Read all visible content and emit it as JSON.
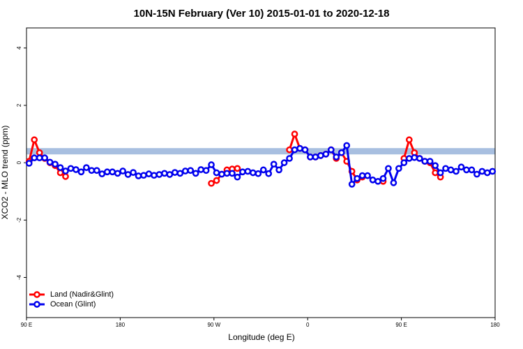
{
  "chart_data": {
    "type": "line",
    "title": "10N-15N February (Ver 10)   2015-01-01 to 2020-12-18",
    "x_label": "Longitude (deg E)",
    "y_label": "XCO2 - MLO trend (ppm)",
    "xlim": [
      90,
      540
    ],
    "ylim": [
      -5.4,
      4.7
    ],
    "xticks": [
      {
        "value": 90,
        "label": "90 E"
      },
      {
        "value": 180,
        "label": "180"
      },
      {
        "value": 270,
        "label": "90 W"
      },
      {
        "value": 360,
        "label": "0"
      },
      {
        "value": 450,
        "label": "90 E"
      },
      {
        "value": 540,
        "label": "180"
      }
    ],
    "yticks": [
      -4,
      -2,
      0,
      2,
      4
    ],
    "band": {
      "ylim": [
        0.29,
        0.51
      ],
      "color": "#a8bfe0"
    },
    "legend": "bottom-left",
    "x": [
      92.5,
      97.5,
      102.5,
      107.5,
      112.5,
      117.5,
      122.5,
      127.5,
      132.5,
      137.5,
      142.5,
      147.5,
      152.5,
      157.5,
      162.5,
      167.5,
      172.5,
      177.5,
      182.5,
      187.5,
      192.5,
      197.5,
      202.5,
      207.5,
      212.5,
      217.5,
      222.5,
      227.5,
      232.5,
      237.5,
      242.5,
      247.5,
      252.5,
      257.5,
      262.5,
      267.5,
      272.5,
      277.5,
      282.5,
      287.5,
      292.5,
      297.5,
      302.5,
      307.5,
      312.5,
      317.5,
      322.5,
      327.5,
      332.5,
      337.5,
      342.5,
      347.5,
      352.5,
      357.5,
      362.5,
      367.5,
      372.5,
      377.5,
      382.5,
      387.5,
      392.5,
      397.5,
      402.5,
      407.5,
      412.5,
      417.5,
      422.5,
      427.5,
      432.5,
      437.5,
      442.5,
      447.5,
      452.5,
      457.5,
      462.5,
      467.5,
      472.5,
      477.5,
      482.5,
      487.5,
      492.5,
      497.5,
      502.5,
      507.5,
      512.5,
      517.5,
      522.5,
      527.5,
      532.5,
      537.5
    ],
    "series": [
      {
        "name": "Land (Nadir&Glint)",
        "color": "#ff0000",
        "values": [
          0.05,
          0.8,
          0.35,
          0.15,
          0,
          -0.1,
          -0.35,
          -0.48,
          null,
          null,
          null,
          null,
          null,
          null,
          null,
          null,
          null,
          null,
          null,
          null,
          null,
          null,
          null,
          null,
          null,
          null,
          null,
          null,
          null,
          null,
          null,
          null,
          null,
          null,
          null,
          -0.72,
          -0.62,
          -0.4,
          -0.25,
          -0.22,
          -0.2,
          null,
          null,
          null,
          null,
          null,
          null,
          null,
          null,
          null,
          0.45,
          1.0,
          0.5,
          0.45,
          0.2,
          0.2,
          0.25,
          0.3,
          0.45,
          0.15,
          0.35,
          0.05,
          -0.3,
          -0.6,
          -0.5,
          null,
          null,
          null,
          -0.65,
          null,
          null,
          null,
          0.15,
          0.8,
          0.35,
          0.15,
          0.05,
          0,
          -0.35,
          -0.5,
          null,
          null,
          null,
          null,
          null,
          null,
          null,
          null,
          null,
          null
        ]
      },
      {
        "name": "Ocean (Glint)",
        "color": "#0000ee",
        "values": [
          -0.02,
          0.17,
          0.17,
          0.17,
          0.02,
          -0.05,
          -0.17,
          -0.29,
          -0.2,
          -0.24,
          -0.32,
          -0.17,
          -0.27,
          -0.27,
          -0.39,
          -0.32,
          -0.32,
          -0.37,
          -0.29,
          -0.41,
          -0.34,
          -0.46,
          -0.44,
          -0.39,
          -0.44,
          -0.41,
          -0.37,
          -0.41,
          -0.34,
          -0.37,
          -0.29,
          -0.27,
          -0.37,
          -0.24,
          -0.27,
          -0.07,
          -0.35,
          -0.4,
          -0.37,
          -0.37,
          -0.5,
          -0.32,
          -0.3,
          -0.35,
          -0.38,
          -0.25,
          -0.38,
          -0.05,
          -0.25,
          0,
          0.15,
          0.45,
          0.5,
          0.45,
          0.2,
          0.2,
          0.25,
          0.3,
          0.45,
          0.2,
          0.35,
          0.6,
          -0.75,
          -0.55,
          -0.45,
          -0.45,
          -0.6,
          -0.65,
          -0.55,
          -0.2,
          -0.7,
          -0.2,
          0,
          0.15,
          0.18,
          0.15,
          0.05,
          0.05,
          -0.1,
          -0.35,
          -0.2,
          -0.25,
          -0.3,
          -0.15,
          -0.25,
          -0.25,
          -0.4,
          -0.3,
          -0.35,
          -0.3
        ]
      }
    ]
  }
}
